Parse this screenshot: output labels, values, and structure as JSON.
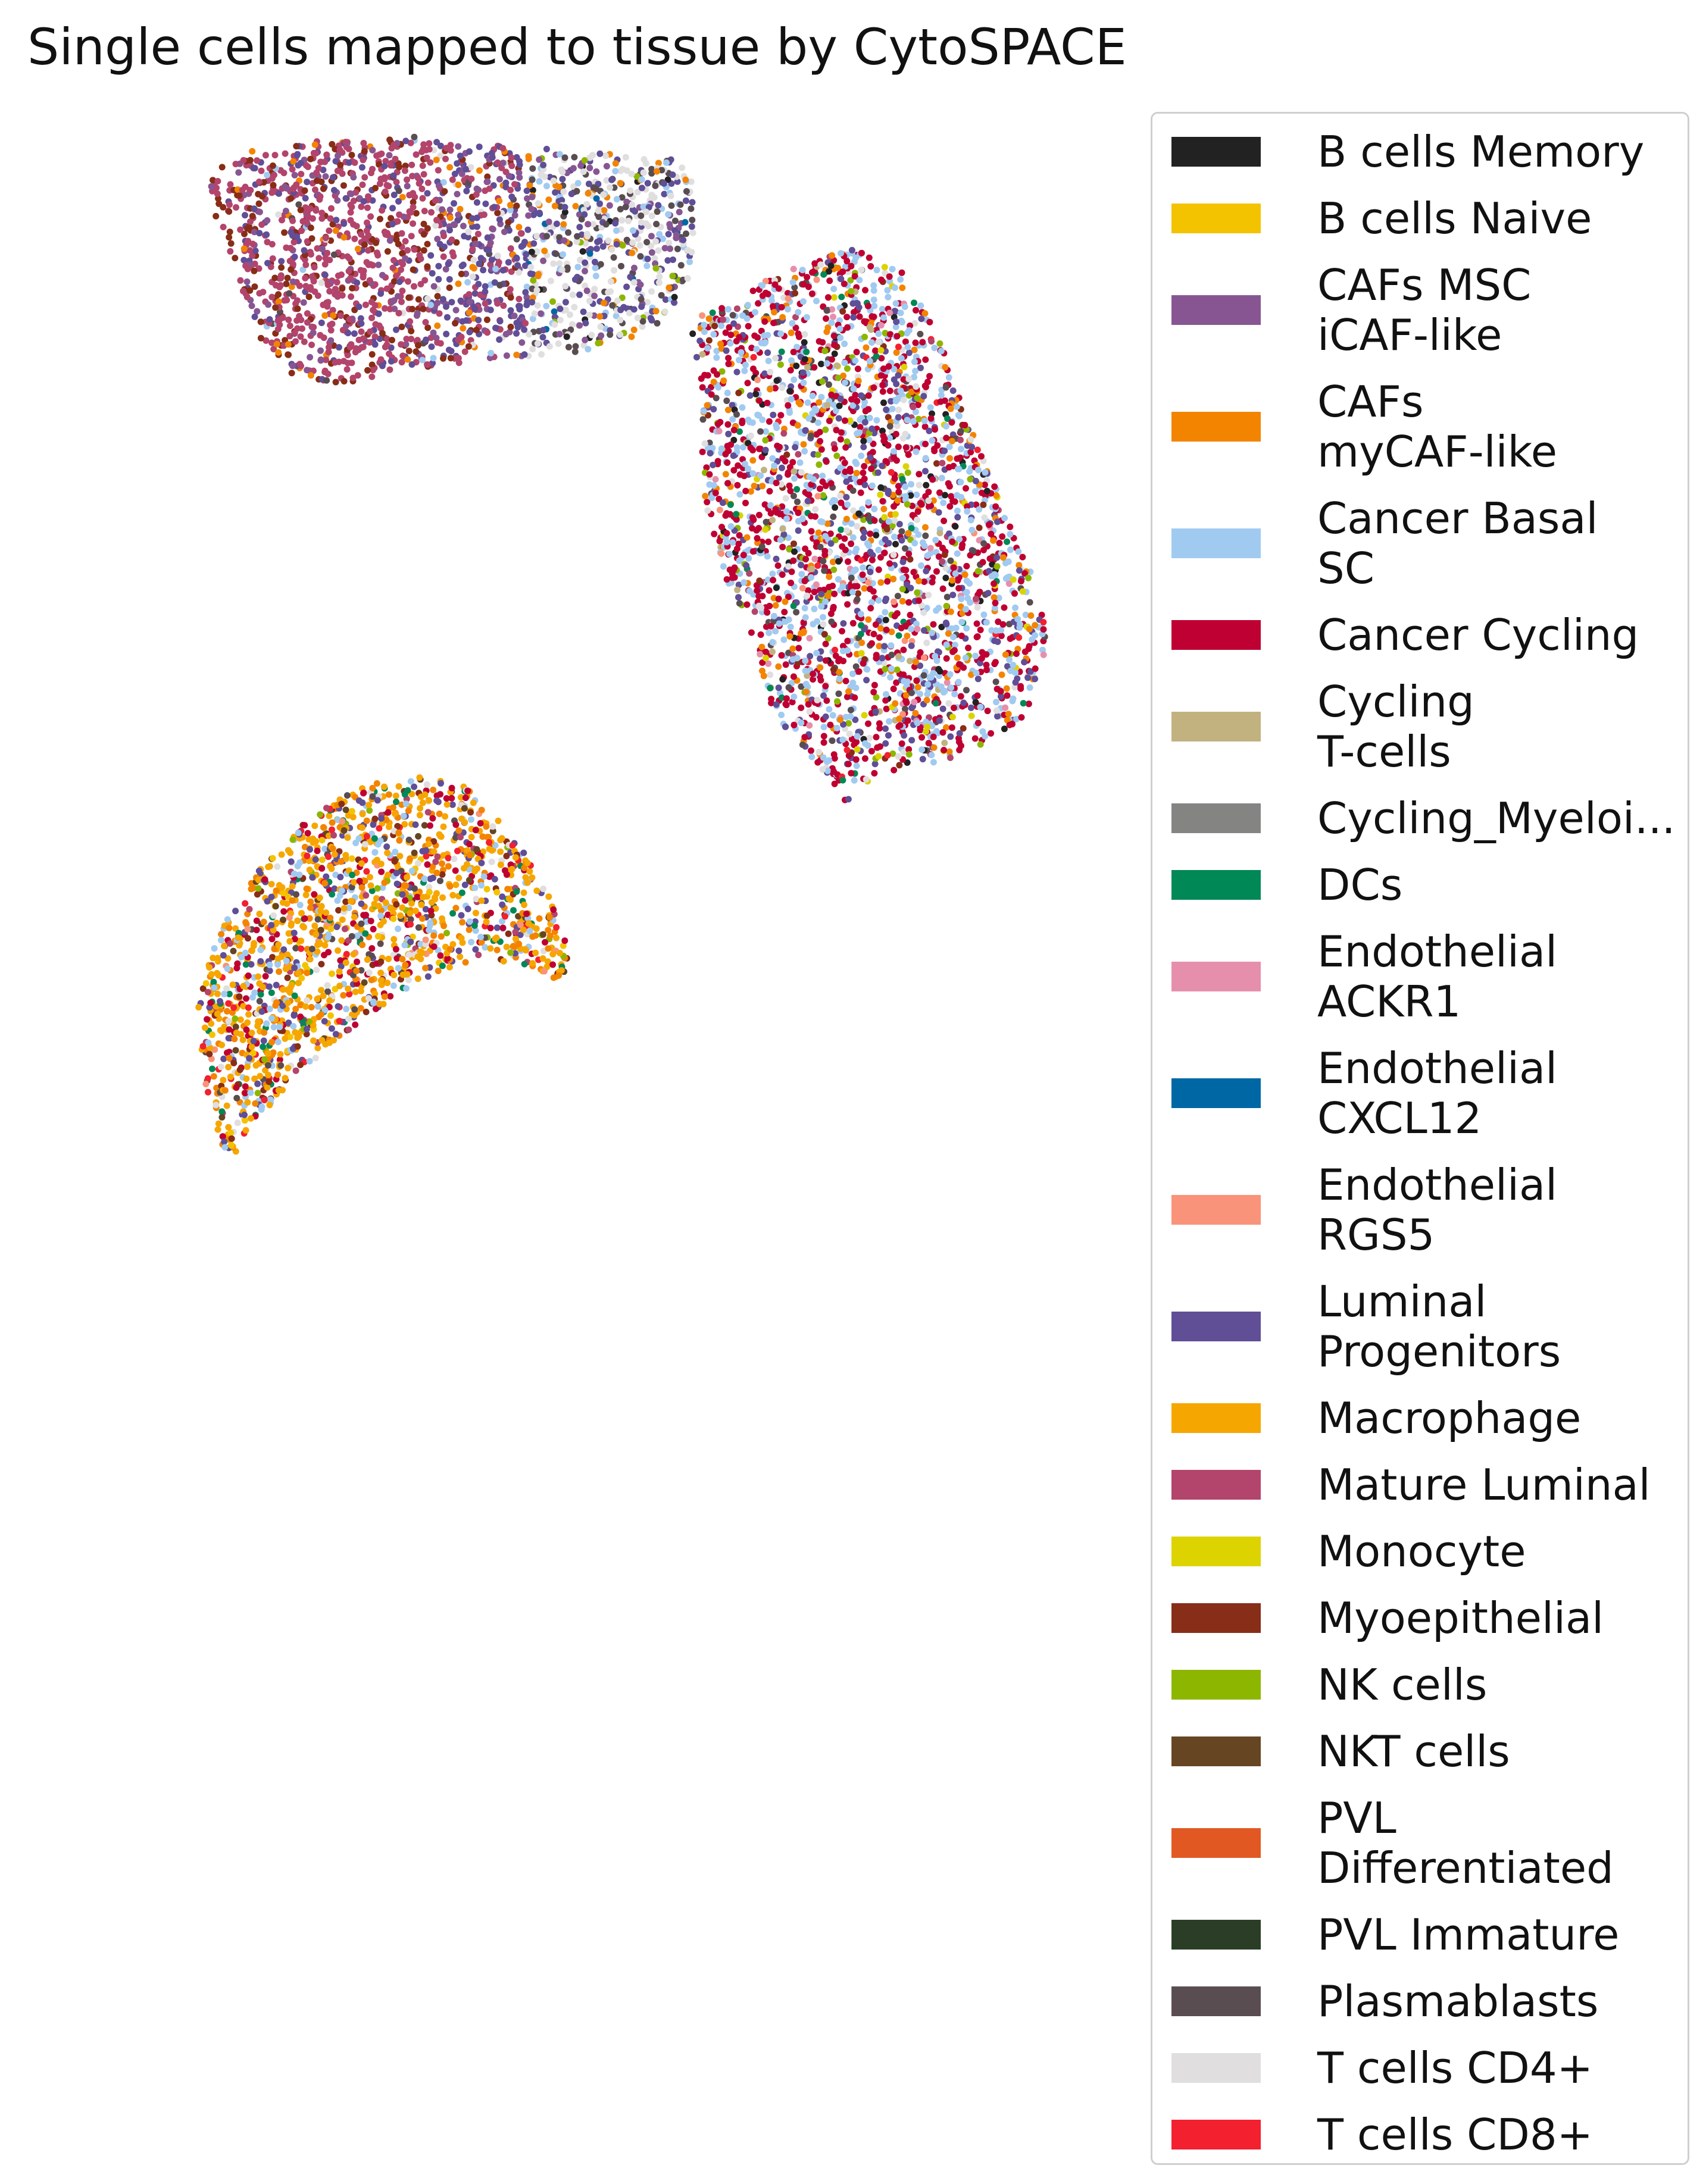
{
  "chart_data": {
    "type": "scatter",
    "title": "Single cells mapped to tissue by CytoSPACE",
    "xlabel": "",
    "ylabel": "",
    "axes_visible": false,
    "grid": false,
    "legend_position": "right",
    "regions": [
      {
        "name": "upper-left section",
        "dominant_types": [
          "Mature Luminal",
          "Myoepithelial",
          "Luminal Progenitors",
          "CAFs MSC iCAF-like"
        ]
      },
      {
        "name": "right section",
        "dominant_types": [
          "Cancer Cycling",
          "Cancer Basal SC",
          "Luminal Progenitors"
        ]
      },
      {
        "name": "lower-left section",
        "dominant_types": [
          "Macrophage",
          "CAFs myCAF-like",
          "Cancer Cycling"
        ]
      }
    ],
    "series": [
      {
        "name": "B cells Memory",
        "label": "B cells Memory",
        "color": "#222222"
      },
      {
        "name": "B cells Naive",
        "label": "B cells Naive",
        "color": "#F3C300"
      },
      {
        "name": "CAFs MSC iCAF-like",
        "label": "CAFs MSC\niCAF-like",
        "color": "#875692"
      },
      {
        "name": "CAFs myCAF-like",
        "label": "CAFs\nmyCAF-like",
        "color": "#F38400"
      },
      {
        "name": "Cancer Basal SC",
        "label": "Cancer Basal\nSC",
        "color": "#A1CAF1"
      },
      {
        "name": "Cancer Cycling",
        "label": "Cancer Cycling",
        "color": "#BE0032"
      },
      {
        "name": "Cycling T-cells",
        "label": "Cycling\nT-cells",
        "color": "#C2B280"
      },
      {
        "name": "Cycling_Myeloid",
        "label": "Cycling_Myeloi...",
        "color": "#848482"
      },
      {
        "name": "DCs",
        "label": "DCs",
        "color": "#008856"
      },
      {
        "name": "Endothelial ACKR1",
        "label": "Endothelial\nACKR1",
        "color": "#E68FAC"
      },
      {
        "name": "Endothelial CXCL12",
        "label": "Endothelial\nCXCL12",
        "color": "#0067A5"
      },
      {
        "name": "Endothelial RGS5",
        "label": "Endothelial\nRGS5",
        "color": "#F99379"
      },
      {
        "name": "Luminal Progenitors",
        "label": "Luminal\nProgenitors",
        "color": "#604E97"
      },
      {
        "name": "Macrophage",
        "label": "Macrophage",
        "color": "#F6A600"
      },
      {
        "name": "Mature Luminal",
        "label": "Mature Luminal",
        "color": "#B3446C"
      },
      {
        "name": "Monocyte",
        "label": "Monocyte",
        "color": "#DCD300"
      },
      {
        "name": "Myoepithelial",
        "label": "Myoepithelial",
        "color": "#882D17"
      },
      {
        "name": "NK cells",
        "label": "NK cells",
        "color": "#8DB600"
      },
      {
        "name": "NKT cells",
        "label": "NKT cells",
        "color": "#654522"
      },
      {
        "name": "PVL Differentiated",
        "label": "PVL\nDifferentiated",
        "color": "#E25822"
      },
      {
        "name": "PVL Immature",
        "label": "PVL Immature",
        "color": "#2B3D26"
      },
      {
        "name": "Plasmablasts",
        "label": "Plasmablasts",
        "color": "#5A4D52"
      },
      {
        "name": "T cells CD4+",
        "label": "T cells CD4+",
        "color": "#E0DEDE"
      },
      {
        "name": "T cells CD8+",
        "label": "T cells CD8+",
        "color": "#F3202F"
      }
    ]
  }
}
